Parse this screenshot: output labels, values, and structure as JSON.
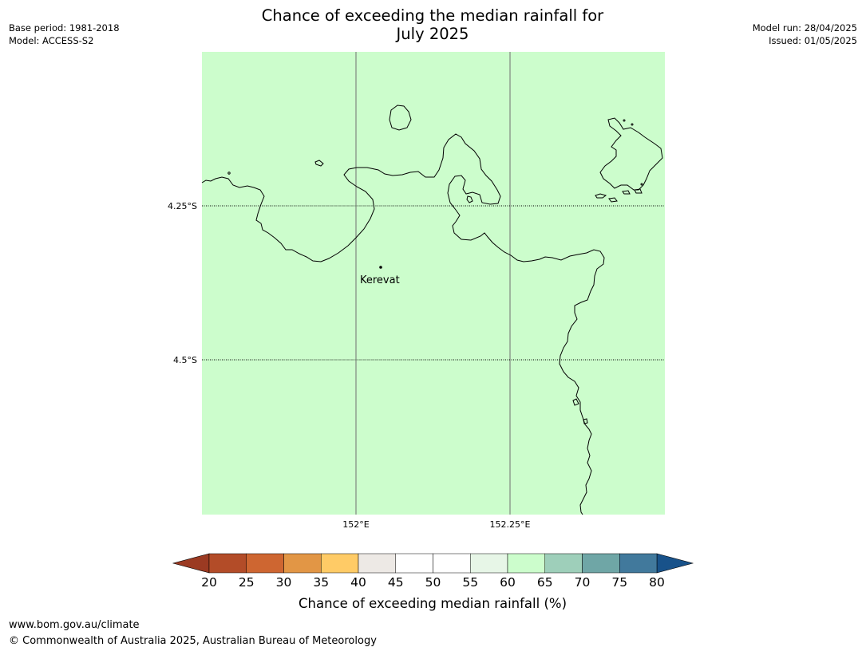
{
  "header": {
    "title_line1": "Chance of exceeding the median rainfall for",
    "title_line2": "July 2025",
    "left_line1": "Base period: 1981-2018",
    "left_line2": "Model: ACCESS-S2",
    "right_line1": "Model run: 28/04/2025",
    "right_line2": "Issued: 01/05/2025"
  },
  "map": {
    "fill_color": "#ccfdcc",
    "lat_labels": [
      "4.25°S",
      "4.5°S"
    ],
    "lon_labels": [
      "152°E",
      "152.25°E"
    ],
    "place": {
      "name": "Kerevat"
    }
  },
  "colorbar": {
    "ticks": [
      "20",
      "25",
      "30",
      "35",
      "40",
      "45",
      "50",
      "55",
      "60",
      "65",
      "70",
      "75",
      "80"
    ],
    "colors": [
      "#b34c28",
      "#ce6631",
      "#e29645",
      "#ffcb66",
      "#ede9e5",
      "#ffffff",
      "#ffffff",
      "#e7f6e7",
      "#ccfdcc",
      "#9ecfba",
      "#6fa6a6",
      "#41799c"
    ],
    "under_color": "#9b3a22",
    "over_color": "#18528a",
    "label": "Chance of exceeding median rainfall (%)"
  },
  "footer": {
    "line1": "www.bom.gov.au/climate",
    "line2": "© Commonwealth of Australia 2025, Australian Bureau of Meteorology"
  }
}
